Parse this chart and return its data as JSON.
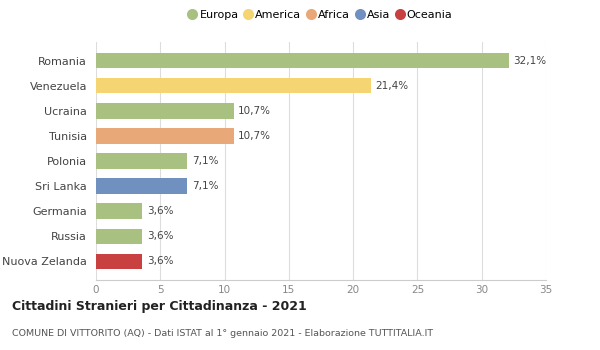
{
  "categories": [
    "Romania",
    "Venezuela",
    "Ucraina",
    "Tunisia",
    "Polonia",
    "Sri Lanka",
    "Germania",
    "Russia",
    "Nuova Zelanda"
  ],
  "values": [
    32.1,
    21.4,
    10.7,
    10.7,
    7.1,
    7.1,
    3.6,
    3.6,
    3.6
  ],
  "labels": [
    "32,1%",
    "21,4%",
    "10,7%",
    "10,7%",
    "7,1%",
    "7,1%",
    "3,6%",
    "3,6%",
    "3,6%"
  ],
  "colors": [
    "#a8c080",
    "#f5d472",
    "#a8c080",
    "#e8a878",
    "#a8c080",
    "#7090c0",
    "#a8c080",
    "#a8c080",
    "#c84040"
  ],
  "legend_labels": [
    "Europa",
    "America",
    "Africa",
    "Asia",
    "Oceania"
  ],
  "legend_colors": [
    "#a8c080",
    "#f5d472",
    "#e8a878",
    "#7090c0",
    "#c84040"
  ],
  "xlim": [
    0,
    35
  ],
  "xticks": [
    0,
    5,
    10,
    15,
    20,
    25,
    30,
    35
  ],
  "title": "Cittadini Stranieri per Cittadinanza - 2021",
  "subtitle": "COMUNE DI VITTORITO (AQ) - Dati ISTAT al 1° gennaio 2021 - Elaborazione TUTTITALIA.IT",
  "background_color": "#ffffff",
  "grid_color": "#dddddd",
  "bar_height": 0.62
}
